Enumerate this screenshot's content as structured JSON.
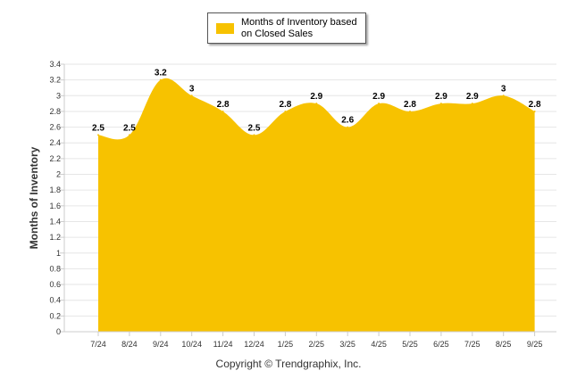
{
  "chart_data": {
    "type": "area",
    "categories": [
      "7/24",
      "8/24",
      "9/24",
      "10/24",
      "11/24",
      "12/24",
      "1/25",
      "2/25",
      "3/25",
      "4/25",
      "5/25",
      "6/25",
      "7/25",
      "8/25",
      "9/25"
    ],
    "series": [
      {
        "name": "Months of Inventory based on Closed Sales",
        "values": [
          2.5,
          2.5,
          3.2,
          3,
          2.8,
          2.5,
          2.8,
          2.9,
          2.6,
          2.9,
          2.8,
          2.9,
          2.9,
          3,
          2.8
        ]
      }
    ],
    "data_labels": [
      "2.5",
      "2.5",
      "3.2",
      "3",
      "2.8",
      "2.5",
      "2.8",
      "2.9",
      "2.6",
      "2.9",
      "2.8",
      "2.9",
      "2.9",
      "3",
      "2.8"
    ],
    "ylabel": "Months of Inventory",
    "ylim": [
      0,
      3.4
    ],
    "yticks": [
      "0",
      "0.2",
      "0.4",
      "0.6",
      "0.8",
      "1",
      "1.2",
      "1.4",
      "1.6",
      "1.8",
      "2",
      "2.2",
      "2.4",
      "2.6",
      "2.8",
      "3",
      "3.2",
      "3.4"
    ],
    "grid": true,
    "legend_position": "top-center",
    "fill_color": "#f7c200",
    "grid_color": "#e6e6e6",
    "axis_color": "#cccccc"
  },
  "footer": {
    "copyright": "Copyright © Trendgraphix, Inc."
  }
}
